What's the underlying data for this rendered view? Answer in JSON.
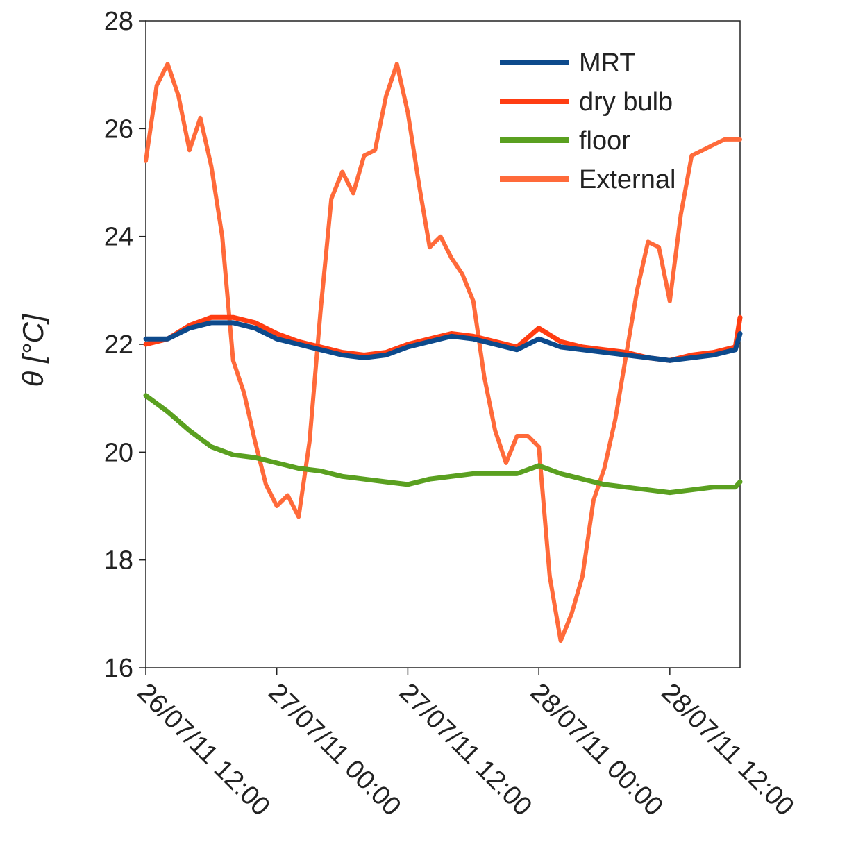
{
  "chart_data": {
    "type": "line",
    "ylabel": "θ [°C]",
    "xlabel": "",
    "ylim": [
      16,
      28
    ],
    "xlim": [
      "26/07/11 12:00",
      "28/07/11 18:26"
    ],
    "yticks": [
      16,
      18,
      20,
      22,
      24,
      26,
      28
    ],
    "xticks": [
      "26/07/11 12:00",
      "27/07/11 00:00",
      "27/07/11 12:00",
      "28/07/11 00:00",
      "28/07/11 12:00"
    ],
    "grid": false,
    "legend": "top-right",
    "colors": {
      "MRT": "#0d4a8c",
      "dry bulb": "#ff3d12",
      "floor": "#5aa020",
      "External": "#ff6a3a"
    },
    "series": [
      {
        "name": "MRT",
        "x": [
          "26/07/11 12:00",
          "26/07/11 14:00",
          "26/07/11 16:00",
          "26/07/11 18:00",
          "26/07/11 20:00",
          "26/07/11 22:00",
          "27/07/11 00:00",
          "27/07/11 02:00",
          "27/07/11 04:00",
          "27/07/11 06:00",
          "27/07/11 08:00",
          "27/07/11 10:00",
          "27/07/11 12:00",
          "27/07/11 14:00",
          "27/07/11 16:00",
          "27/07/11 18:00",
          "27/07/11 20:00",
          "27/07/11 22:00",
          "28/07/11 00:00",
          "28/07/11 02:00",
          "28/07/11 04:00",
          "28/07/11 06:00",
          "28/07/11 08:00",
          "28/07/11 10:00",
          "28/07/11 12:00",
          "28/07/11 14:00",
          "28/07/11 16:00",
          "28/07/11 18:00",
          "28/07/11 18:26"
        ],
        "y": [
          22.1,
          22.1,
          22.3,
          22.4,
          22.4,
          22.3,
          22.1,
          22.0,
          21.9,
          21.8,
          21.75,
          21.8,
          21.95,
          22.05,
          22.15,
          22.1,
          22.0,
          21.9,
          22.1,
          21.95,
          21.9,
          21.85,
          21.8,
          21.75,
          21.7,
          21.75,
          21.8,
          21.9,
          22.2
        ]
      },
      {
        "name": "dry bulb",
        "x": [
          "26/07/11 12:00",
          "26/07/11 14:00",
          "26/07/11 16:00",
          "26/07/11 18:00",
          "26/07/11 20:00",
          "26/07/11 22:00",
          "27/07/11 00:00",
          "27/07/11 02:00",
          "27/07/11 04:00",
          "27/07/11 06:00",
          "27/07/11 08:00",
          "27/07/11 10:00",
          "27/07/11 12:00",
          "27/07/11 14:00",
          "27/07/11 16:00",
          "27/07/11 18:00",
          "27/07/11 20:00",
          "27/07/11 22:00",
          "28/07/11 00:00",
          "28/07/11 02:00",
          "28/07/11 04:00",
          "28/07/11 06:00",
          "28/07/11 08:00",
          "28/07/11 10:00",
          "28/07/11 12:00",
          "28/07/11 14:00",
          "28/07/11 16:00",
          "28/07/11 18:00",
          "28/07/11 18:26"
        ],
        "y": [
          22.0,
          22.1,
          22.35,
          22.5,
          22.5,
          22.4,
          22.2,
          22.05,
          21.95,
          21.85,
          21.8,
          21.85,
          22.0,
          22.1,
          22.2,
          22.15,
          22.05,
          21.95,
          22.3,
          22.05,
          21.95,
          21.9,
          21.85,
          21.75,
          21.7,
          21.8,
          21.85,
          21.95,
          22.5
        ]
      },
      {
        "name": "floor",
        "x": [
          "26/07/11 12:00",
          "26/07/11 14:00",
          "26/07/11 16:00",
          "26/07/11 18:00",
          "26/07/11 20:00",
          "26/07/11 22:00",
          "27/07/11 00:00",
          "27/07/11 02:00",
          "27/07/11 04:00",
          "27/07/11 06:00",
          "27/07/11 08:00",
          "27/07/11 10:00",
          "27/07/11 12:00",
          "27/07/11 14:00",
          "27/07/11 16:00",
          "27/07/11 18:00",
          "27/07/11 20:00",
          "27/07/11 22:00",
          "28/07/11 00:00",
          "28/07/11 02:00",
          "28/07/11 04:00",
          "28/07/11 06:00",
          "28/07/11 08:00",
          "28/07/11 10:00",
          "28/07/11 12:00",
          "28/07/11 14:00",
          "28/07/11 16:00",
          "28/07/11 18:00",
          "28/07/11 18:26"
        ],
        "y": [
          21.05,
          20.75,
          20.4,
          20.1,
          19.95,
          19.9,
          19.8,
          19.7,
          19.65,
          19.55,
          19.5,
          19.45,
          19.4,
          19.5,
          19.55,
          19.6,
          19.6,
          19.6,
          19.75,
          19.6,
          19.5,
          19.4,
          19.35,
          19.3,
          19.25,
          19.3,
          19.35,
          19.35,
          19.45
        ]
      },
      {
        "name": "External",
        "x": [
          "26/07/11 12:00",
          "26/07/11 13:00",
          "26/07/11 14:00",
          "26/07/11 15:00",
          "26/07/11 16:00",
          "26/07/11 17:00",
          "26/07/11 18:00",
          "26/07/11 19:00",
          "26/07/11 20:00",
          "26/07/11 21:00",
          "26/07/11 22:00",
          "26/07/11 23:00",
          "27/07/11 00:00",
          "27/07/11 01:00",
          "27/07/11 02:00",
          "27/07/11 03:00",
          "27/07/11 04:00",
          "27/07/11 05:00",
          "27/07/11 06:00",
          "27/07/11 07:00",
          "27/07/11 08:00",
          "27/07/11 09:00",
          "27/07/11 10:00",
          "27/07/11 11:00",
          "27/07/11 12:00",
          "27/07/11 13:00",
          "27/07/11 14:00",
          "27/07/11 15:00",
          "27/07/11 16:00",
          "27/07/11 17:00",
          "27/07/11 18:00",
          "27/07/11 19:00",
          "27/07/11 20:00",
          "27/07/11 21:00",
          "27/07/11 22:00",
          "27/07/11 23:00",
          "28/07/11 00:00",
          "28/07/11 01:00",
          "28/07/11 02:00",
          "28/07/11 03:00",
          "28/07/11 04:00",
          "28/07/11 05:00",
          "28/07/11 06:00",
          "28/07/11 07:00",
          "28/07/11 08:00",
          "28/07/11 09:00",
          "28/07/11 10:00",
          "28/07/11 11:00",
          "28/07/11 12:00",
          "28/07/11 13:00",
          "28/07/11 14:00",
          "28/07/11 15:00",
          "28/07/11 16:00",
          "28/07/11 17:00",
          "28/07/11 18:00",
          "28/07/11 18:26"
        ],
        "y": [
          25.4,
          26.8,
          27.2,
          26.6,
          25.6,
          26.2,
          25.3,
          24.0,
          21.7,
          21.1,
          20.2,
          19.4,
          19.0,
          19.2,
          18.8,
          20.2,
          22.6,
          24.7,
          25.2,
          24.8,
          25.5,
          25.6,
          26.6,
          27.2,
          26.3,
          25.0,
          23.8,
          24.0,
          23.6,
          23.3,
          22.8,
          21.4,
          20.4,
          19.8,
          20.3,
          20.3,
          20.1,
          17.7,
          16.5,
          17.0,
          17.7,
          19.1,
          19.7,
          20.6,
          21.8,
          23.0,
          23.9,
          23.8,
          22.8,
          24.4,
          25.5,
          25.6,
          25.7,
          25.8,
          25.8,
          25.8
        ]
      }
    ]
  }
}
